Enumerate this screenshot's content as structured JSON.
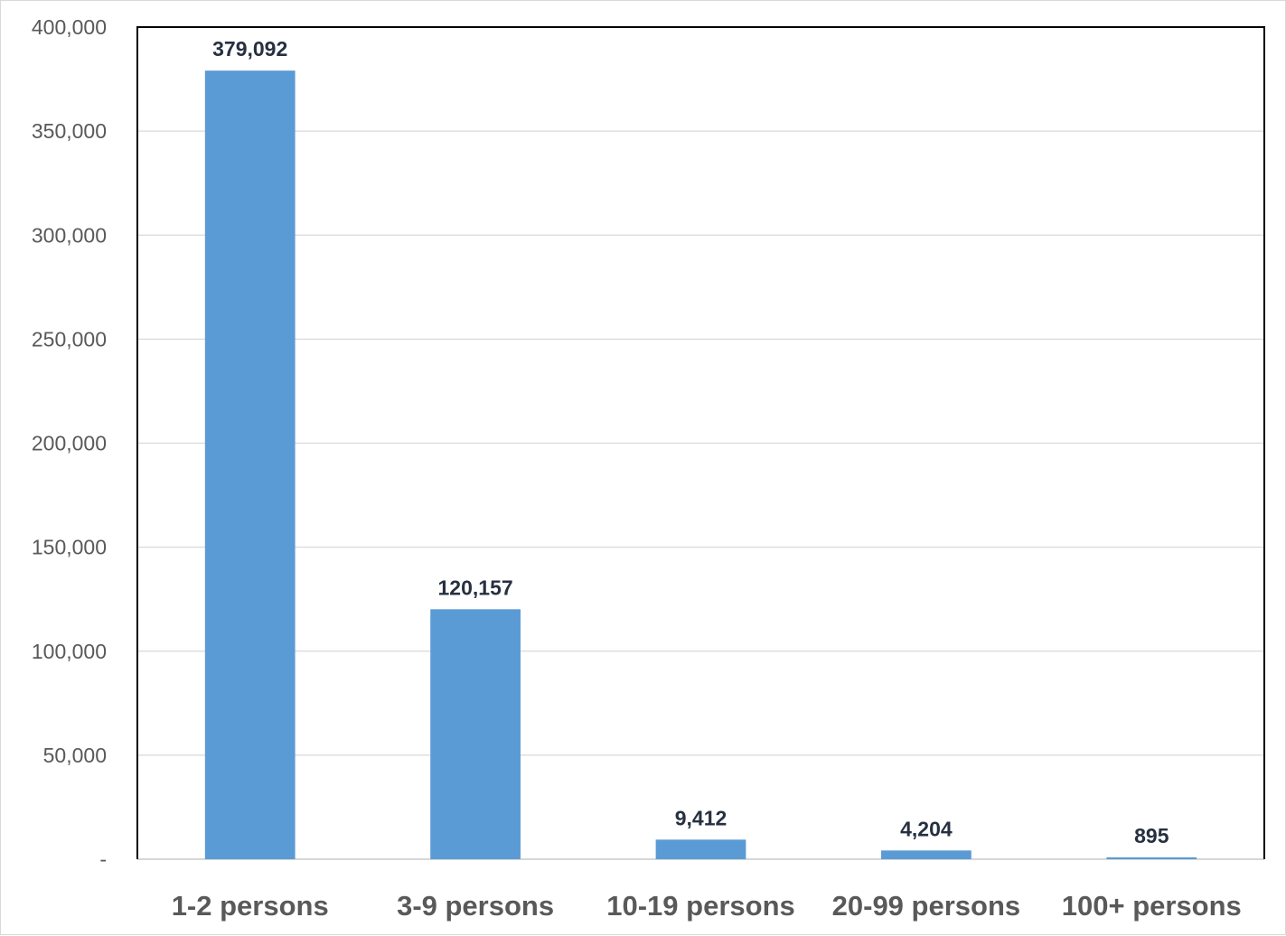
{
  "chart_data": {
    "type": "bar",
    "categories": [
      "1-2 persons",
      "3-9 persons",
      "10-19 persons",
      "20-99 persons",
      "100+ persons"
    ],
    "values": [
      379092,
      120157,
      9412,
      4204,
      895
    ],
    "data_labels": [
      "379,092",
      "120,157",
      "9,412",
      "4,204",
      "895"
    ],
    "ylim": [
      0,
      400000
    ],
    "y_ticks": [
      0,
      50000,
      100000,
      150000,
      200000,
      250000,
      300000,
      350000,
      400000
    ],
    "y_tick_labels": [
      "-",
      "50,000",
      "100,000",
      "150,000",
      "200,000",
      "250,000",
      "300,000",
      "350,000",
      "400,000"
    ],
    "grid": true,
    "legend": "none",
    "colors": {
      "bar": "#5b9bd5",
      "grid": "#d9d9d9",
      "axis_text": "#595959",
      "data_label_text": "#263040",
      "plot_border": "#000000"
    }
  }
}
